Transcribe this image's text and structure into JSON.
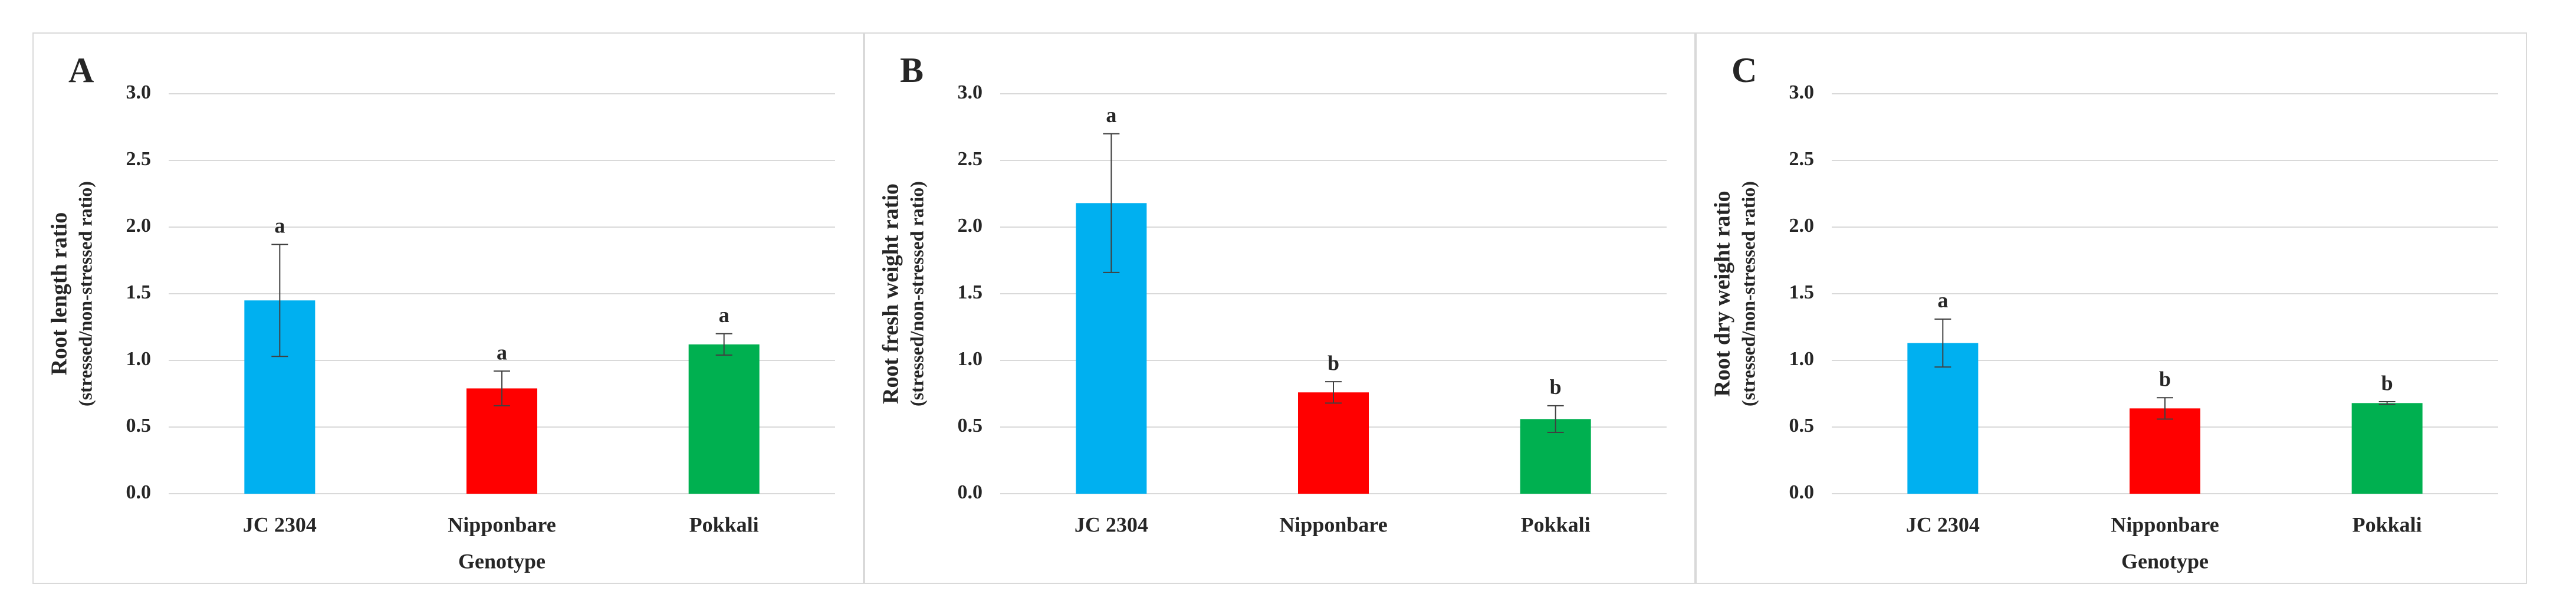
{
  "chart_data": [
    {
      "type": "bar",
      "panel_label": "A",
      "ylabel": "Root length ratio",
      "ylabel_sub": "(stressed/non-stressed ratio)",
      "xlabel": "Genotype",
      "categories": [
        "JC 2304",
        "Nipponbare",
        "Pokkali"
      ],
      "values": [
        1.45,
        0.79,
        1.12
      ],
      "errors": [
        0.42,
        0.13,
        0.08
      ],
      "letters": [
        "a",
        "a",
        "a"
      ],
      "colors": [
        "#00b0f0",
        "#ff0000",
        "#00b050"
      ],
      "ylim": [
        0,
        3
      ],
      "yticks": [
        {
          "value": 0,
          "label": "0.0"
        },
        {
          "value": 0.5,
          "label": "0.5"
        },
        {
          "value": 1,
          "label": "1.0"
        },
        {
          "value": 1.5,
          "label": "1.5"
        },
        {
          "value": 2,
          "label": "2.0"
        },
        {
          "value": 2.5,
          "label": "2.5"
        },
        {
          "value": 3,
          "label": "3.0"
        }
      ],
      "grid": true
    },
    {
      "type": "bar",
      "panel_label": "B",
      "ylabel": "Root fresh weight ratio",
      "ylabel_sub": "(stressed/non-stressed ratio)",
      "categories": [
        "JC 2304",
        "Nipponbare",
        "Pokkali"
      ],
      "values": [
        2.18,
        0.76,
        0.56
      ],
      "errors": [
        0.52,
        0.08,
        0.1
      ],
      "letters": [
        "a",
        "b",
        "b"
      ],
      "colors": [
        "#00b0f0",
        "#ff0000",
        "#00b050"
      ],
      "ylim": [
        0,
        3
      ],
      "yticks": [
        {
          "value": 0,
          "label": "0.0"
        },
        {
          "value": 0.5,
          "label": "0.5"
        },
        {
          "value": 1,
          "label": "1.0"
        },
        {
          "value": 1.5,
          "label": "1.5"
        },
        {
          "value": 2,
          "label": "2.0"
        },
        {
          "value": 2.5,
          "label": "2.5"
        },
        {
          "value": 3,
          "label": "3.0"
        }
      ],
      "grid": true
    },
    {
      "type": "bar",
      "panel_label": "C",
      "ylabel": "Root dry weight ratio",
      "ylabel_sub": "(stressed/non-stressed ratio)",
      "xlabel": "Genotype",
      "categories": [
        "JC 2304",
        "Nipponbare",
        "Pokkali"
      ],
      "values": [
        1.13,
        0.64,
        0.68
      ],
      "errors": [
        0.18,
        0.08,
        0.01
      ],
      "letters": [
        "a",
        "b",
        "b"
      ],
      "colors": [
        "#00b0f0",
        "#ff0000",
        "#00b050"
      ],
      "ylim": [
        0,
        3
      ],
      "yticks": [
        {
          "value": 0,
          "label": "0.0"
        },
        {
          "value": 0.5,
          "label": "0.5"
        },
        {
          "value": 1,
          "label": "1.0"
        },
        {
          "value": 1.5,
          "label": "1.5"
        },
        {
          "value": 2,
          "label": "2.0"
        },
        {
          "value": 2.5,
          "label": "2.5"
        },
        {
          "value": 3,
          "label": "3.0"
        }
      ],
      "grid": true
    }
  ]
}
